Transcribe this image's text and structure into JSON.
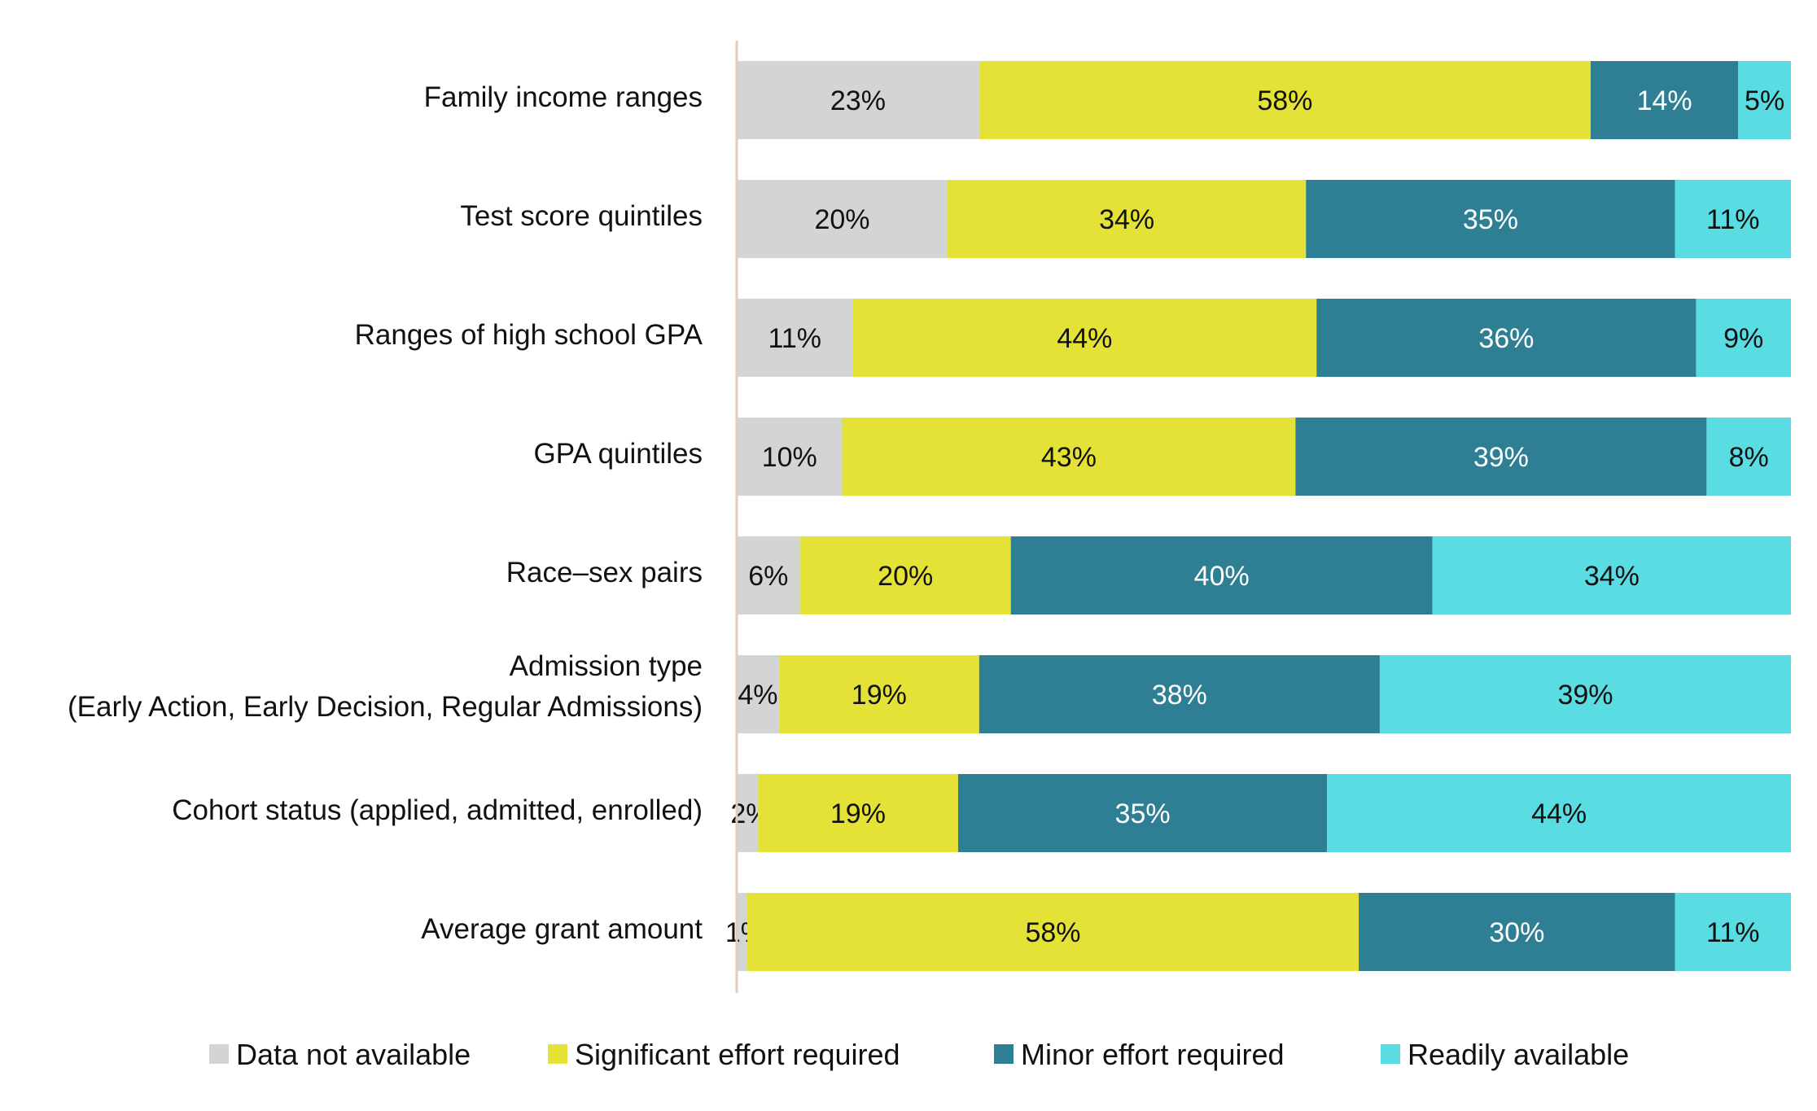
{
  "chart_data": {
    "type": "bar",
    "orientation": "horizontal",
    "stacked": true,
    "normalized": true,
    "categories": [
      [
        "Family income ranges"
      ],
      [
        "Test score quintiles"
      ],
      [
        "Ranges of high school GPA"
      ],
      [
        "GPA quintiles"
      ],
      [
        "Race–sex pairs"
      ],
      [
        "Admission type",
        "(Early Action, Early Decision, Regular Admissions)"
      ],
      [
        "Cohort status (applied, admitted, enrolled)"
      ],
      [
        "Average grant amount"
      ]
    ],
    "series": [
      {
        "name": "Data not available",
        "color": "#d3d5d4",
        "label_color": "#111111",
        "values": [
          23,
          20,
          11,
          10,
          6,
          4,
          2,
          1
        ],
        "labels": [
          "23%",
          "20%",
          "11%",
          "10%",
          "6%",
          "4%",
          "2%",
          "1%"
        ]
      },
      {
        "name": "Significant effort required",
        "color": "#e4e236",
        "label_color": "#111111",
        "values": [
          58,
          34,
          44,
          43,
          20,
          19,
          19,
          58
        ],
        "labels": [
          "58%",
          "34%",
          "44%",
          "43%",
          "20%",
          "19%",
          "19%",
          "58%"
        ]
      },
      {
        "name": "Minor effort required",
        "color": "#2e7f93",
        "label_color": "#ffffff",
        "values": [
          14,
          35,
          36,
          39,
          40,
          38,
          35,
          30
        ],
        "labels": [
          "14%",
          "35%",
          "36%",
          "39%",
          "40%",
          "38%",
          "35%",
          "30%"
        ]
      },
      {
        "name": "Readily available",
        "color": "#5adce3",
        "label_color": "#111111",
        "values": [
          5,
          11,
          9,
          8,
          34,
          39,
          44,
          11
        ],
        "labels": [
          "5%",
          "11%",
          "9%",
          "8%",
          "34%",
          "39%",
          "44%",
          "11%"
        ]
      }
    ],
    "xlim": [
      0,
      100
    ],
    "grid": false,
    "axis_line_color": "#e8c9be",
    "legend_position": "bottom"
  }
}
